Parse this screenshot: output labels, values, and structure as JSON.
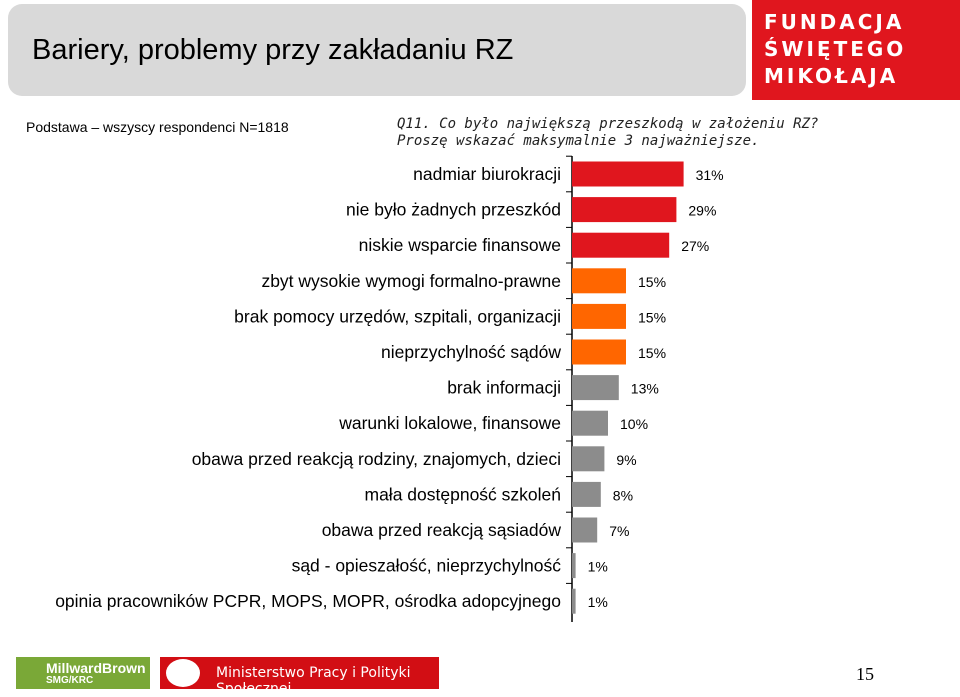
{
  "header": {
    "title": "Bariery, problemy przy zakładaniu RZ",
    "brand_lines": [
      "FUNDACJA",
      "ŚWIĘTEGO",
      "MIKOŁAJA"
    ]
  },
  "podstawa": "Podstawa – wszyscy respondenci N=1818",
  "question": {
    "line1": "Q11. Co było największą przeszkodą w założeniu RZ?",
    "line2": "Proszę wskazać maksymalnie 3 najważniejsze."
  },
  "chart_data": {
    "type": "bar",
    "orientation": "horizontal",
    "categories": [
      "nadmiar biurokracji",
      "nie było żadnych przeszkód",
      "niskie wsparcie finansowe",
      "zbyt wysokie wymogi formalno-prawne",
      "brak pomocy urzędów, szpitali, organizacji",
      "nieprzychylność sądów",
      "brak informacji",
      "warunki lokalowe, finansowe",
      "obawa przed reakcją rodziny, znajomych, dzieci",
      "mała dostępność szkoleń",
      "obawa przed reakcją sąsiadów",
      "sąd - opieszałość, nieprzychylność",
      "opinia pracowników PCPR, MOPS, MOPR, ośrodka adopcyjnego"
    ],
    "values": [
      31,
      29,
      27,
      15,
      15,
      15,
      13,
      10,
      9,
      8,
      7,
      1,
      1
    ],
    "value_labels": [
      "31%",
      "29%",
      "27%",
      "15%",
      "15%",
      "15%",
      "13%",
      "10%",
      "9%",
      "8%",
      "7%",
      "1%",
      "1%"
    ],
    "bar_colors": [
      "#e0161e",
      "#e0161e",
      "#e0161e",
      "#ff6600",
      "#ff6600",
      "#ff6600",
      "#8c8c8c",
      "#8c8c8c",
      "#8c8c8c",
      "#8c8c8c",
      "#8c8c8c",
      "#8c8c8c",
      "#8c8c8c"
    ],
    "unit": "%",
    "grid": false
  },
  "footer": {
    "logo1_line1": "MillwardBrown",
    "logo1_line2": "SMG/KRC",
    "ministry": "Ministerstwo Pracy i Polityki Społecznej",
    "page_number": "15"
  },
  "colors": {
    "brand_red": "#e0161e",
    "accent_orange": "#ff6600",
    "neutral_gray": "#8c8c8c"
  }
}
